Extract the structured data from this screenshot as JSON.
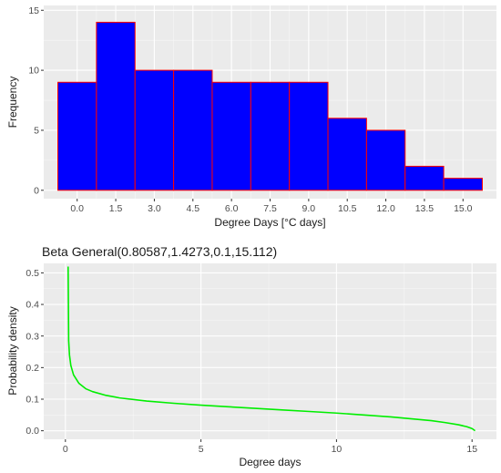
{
  "chart_data": [
    {
      "type": "bar",
      "subtype": "histogram",
      "title": "",
      "xlabel": "Degree Days [°C days]",
      "ylabel": "Frequency",
      "bin_width": 1.5,
      "bin_centers": [
        0.0,
        1.5,
        3.0,
        4.5,
        6.0,
        7.5,
        9.0,
        10.5,
        12.0,
        13.5,
        15.0
      ],
      "values": [
        9,
        14,
        10,
        10,
        9,
        9,
        9,
        6,
        5,
        2,
        1
      ],
      "xlim": [
        -1.3,
        16.3
      ],
      "ylim": [
        -0.7,
        15.4
      ],
      "xticks": [
        0.0,
        1.5,
        3.0,
        4.5,
        6.0,
        7.5,
        9.0,
        10.5,
        12.0,
        13.5,
        15.0
      ],
      "xtick_labels": [
        "0.0",
        "1.5",
        "3.0",
        "4.5",
        "6.0",
        "7.5",
        "9.0",
        "10.5",
        "12.0",
        "13.5",
        "15.0"
      ],
      "yticks": [
        0,
        5,
        10,
        15
      ],
      "ytick_labels": [
        "0",
        "5",
        "10",
        "15"
      ],
      "fill_color": "#0000ff",
      "edge_color": "#ff0000",
      "panel_color": "#ebebeb",
      "grid": true
    },
    {
      "type": "line",
      "title": "Beta General(0.80587,1.4273,0.1,15.112)",
      "xlabel": "Degree days",
      "ylabel": "Probability density",
      "distribution": {
        "name": "Beta General",
        "alpha1": 0.80587,
        "alpha2": 1.4273,
        "min": 0.1,
        "max": 15.112
      },
      "x": [
        0.1,
        0.12,
        0.15,
        0.2,
        0.3,
        0.5,
        0.75,
        1.0,
        1.5,
        2.0,
        3.0,
        4.0,
        5.0,
        6.0,
        7.0,
        8.0,
        9.0,
        10.0,
        11.0,
        12.0,
        13.0,
        13.5,
        14.0,
        14.5,
        14.8,
        15.0,
        15.112
      ],
      "y": [
        0.52,
        0.285,
        0.24,
        0.207,
        0.177,
        0.15,
        0.133,
        0.124,
        0.112,
        0.104,
        0.094,
        0.087,
        0.081,
        0.076,
        0.071,
        0.066,
        0.061,
        0.056,
        0.05,
        0.044,
        0.036,
        0.032,
        0.026,
        0.019,
        0.013,
        0.007,
        0.0
      ],
      "xlim": [
        -0.8,
        15.9
      ],
      "ylim": [
        -0.027,
        0.53
      ],
      "xticks": [
        0,
        5,
        10,
        15
      ],
      "xtick_labels": [
        "0",
        "5",
        "10",
        "15"
      ],
      "yticks": [
        0.0,
        0.1,
        0.2,
        0.3,
        0.4,
        0.5
      ],
      "ytick_labels": [
        "0.0",
        "0.1",
        "0.2",
        "0.3",
        "0.4",
        "0.5"
      ],
      "line_color": "#00ee00",
      "panel_color": "#ebebeb",
      "grid": true
    }
  ]
}
